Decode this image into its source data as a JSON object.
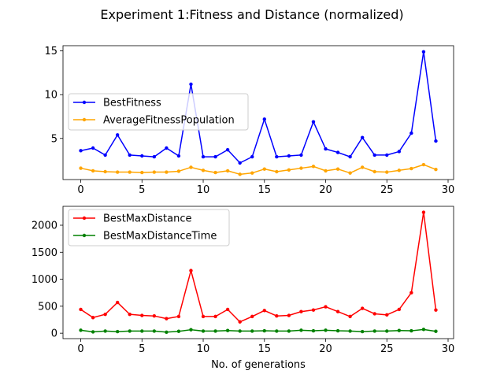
{
  "figure": {
    "title": "Experiment 1:Fitness and Distance (normalized)"
  },
  "chart_data": [
    {
      "type": "line",
      "title": "",
      "xlabel": "",
      "ylabel": "",
      "xlim": [
        -1.45,
        30.45
      ],
      "ylim": [
        0.3,
        15.6
      ],
      "xticks": [
        0,
        5,
        10,
        15,
        20,
        25,
        30
      ],
      "yticks": [
        5,
        10,
        15
      ],
      "x": [
        0,
        1,
        2,
        3,
        4,
        5,
        6,
        7,
        8,
        9,
        10,
        11,
        12,
        13,
        14,
        15,
        16,
        17,
        18,
        19,
        20,
        21,
        22,
        23,
        24,
        25,
        26,
        27,
        28,
        29
      ],
      "series": [
        {
          "name": "BestFitness",
          "color": "#0000ff",
          "values": [
            3.6,
            3.9,
            3.1,
            5.4,
            3.1,
            3.0,
            2.9,
            3.9,
            3.0,
            11.2,
            2.9,
            2.9,
            3.7,
            2.2,
            2.9,
            7.2,
            2.9,
            3.0,
            3.1,
            6.9,
            3.8,
            3.4,
            2.9,
            5.1,
            3.1,
            3.1,
            3.5,
            5.6,
            14.9,
            4.7
          ]
        },
        {
          "name": "AverageFitnessPopulation",
          "color": "#ffa500",
          "values": [
            1.6,
            1.3,
            1.2,
            1.15,
            1.15,
            1.1,
            1.15,
            1.15,
            1.25,
            1.7,
            1.35,
            1.1,
            1.3,
            0.9,
            1.05,
            1.5,
            1.2,
            1.4,
            1.6,
            1.8,
            1.3,
            1.5,
            1.05,
            1.7,
            1.2,
            1.15,
            1.35,
            1.55,
            2.0,
            1.45
          ]
        }
      ],
      "legend": "left"
    },
    {
      "type": "line",
      "title": "",
      "xlabel": "No. of generations",
      "ylabel": "",
      "xlim": [
        -1.45,
        30.45
      ],
      "ylim": [
        -100,
        2350
      ],
      "xticks": [
        0,
        5,
        10,
        15,
        20,
        25,
        30
      ],
      "yticks": [
        0,
        500,
        1000,
        1500,
        2000
      ],
      "x": [
        0,
        1,
        2,
        3,
        4,
        5,
        6,
        7,
        8,
        9,
        10,
        11,
        12,
        13,
        14,
        15,
        16,
        17,
        18,
        19,
        20,
        21,
        22,
        23,
        24,
        25,
        26,
        27,
        28,
        29
      ],
      "series": [
        {
          "name": "BestMaxDistance",
          "color": "#ff0000",
          "values": [
            440,
            290,
            350,
            570,
            350,
            330,
            320,
            270,
            310,
            1160,
            310,
            310,
            440,
            210,
            310,
            420,
            320,
            330,
            400,
            430,
            490,
            400,
            310,
            460,
            360,
            340,
            440,
            750,
            2240,
            430
          ]
        },
        {
          "name": "BestMaxDistanceTime",
          "color": "#008000",
          "values": [
            55,
            25,
            40,
            30,
            40,
            40,
            40,
            20,
            35,
            65,
            40,
            40,
            50,
            40,
            40,
            45,
            40,
            40,
            55,
            45,
            55,
            45,
            40,
            30,
            40,
            40,
            50,
            45,
            70,
            35
          ]
        }
      ],
      "legend": "upper left"
    }
  ]
}
